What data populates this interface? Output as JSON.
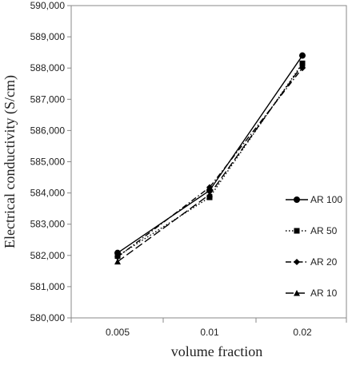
{
  "chart_data": {
    "type": "line",
    "title": "",
    "xlabel": "volume fraction",
    "ylabel": "Electrical conductivity (S/cm)",
    "categories": [
      "0.005",
      "0.01",
      "0.02"
    ],
    "ylim": [
      580000,
      590000
    ],
    "yticks": [
      "580,000",
      "581,000",
      "582,000",
      "583,000",
      "584,000",
      "585,000",
      "586,000",
      "587,000",
      "588,000",
      "589,000",
      "590,000"
    ],
    "grid": false,
    "legend_position": "right",
    "series": [
      {
        "name": "AR 100",
        "values": [
          582080,
          584080,
          588400
        ],
        "marker": "circle",
        "dash": "solid"
      },
      {
        "name": "AR 50",
        "values": [
          581980,
          583860,
          588150
        ],
        "marker": "square",
        "dash": "dotted"
      },
      {
        "name": "AR 20",
        "values": [
          581950,
          584180,
          588000
        ],
        "marker": "diamond",
        "dash": "dashdot"
      },
      {
        "name": "AR 10",
        "values": [
          581800,
          583950,
          588100
        ],
        "marker": "triangle",
        "dash": "longdash"
      }
    ],
    "color": "#000000"
  }
}
